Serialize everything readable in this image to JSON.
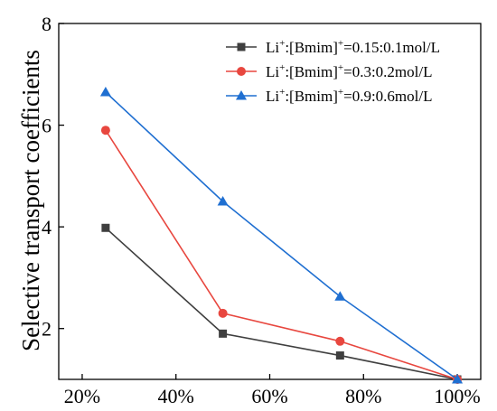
{
  "chart_data": {
    "type": "line",
    "xlabel": "",
    "ylabel": "Selective transport coefficients",
    "x": [
      0.25,
      0.5,
      0.75,
      1.0
    ],
    "x_tick_values": [
      0.2,
      0.4,
      0.6,
      0.8,
      1.0
    ],
    "x_tick_labels": [
      "20%",
      "40%",
      "60%",
      "80%",
      "100%"
    ],
    "xlim": [
      0.15,
      1.05
    ],
    "ylim": [
      1,
      8
    ],
    "y_tick_values": [
      2,
      4,
      6,
      8
    ],
    "y_tick_labels": [
      "2",
      "4",
      "6",
      "8"
    ],
    "grid": false,
    "legend_position": "top-right",
    "series": [
      {
        "name_base": "Li",
        "name_sup1": "+",
        "name_mid": ":[Bmim]",
        "name_sup2": "+",
        "name_tail": "=0.15:0.1mol/L",
        "color": "#3f3f3f",
        "marker": "square",
        "values": [
          3.98,
          1.9,
          1.47,
          1.0
        ]
      },
      {
        "name_base": "Li",
        "name_sup1": "+",
        "name_mid": ":[Bmim]",
        "name_sup2": "+",
        "name_tail": "=0.3:0.2mol/L",
        "color": "#e8473f",
        "marker": "circle",
        "values": [
          5.9,
          2.3,
          1.75,
          1.0
        ]
      },
      {
        "name_base": "Li",
        "name_sup1": "+",
        "name_mid": ":[Bmim]",
        "name_sup2": "+",
        "name_tail": "=0.9:0.6mol/L",
        "color": "#1f6fd1",
        "marker": "triangle",
        "values": [
          6.65,
          4.5,
          2.63,
          1.0
        ]
      }
    ]
  }
}
